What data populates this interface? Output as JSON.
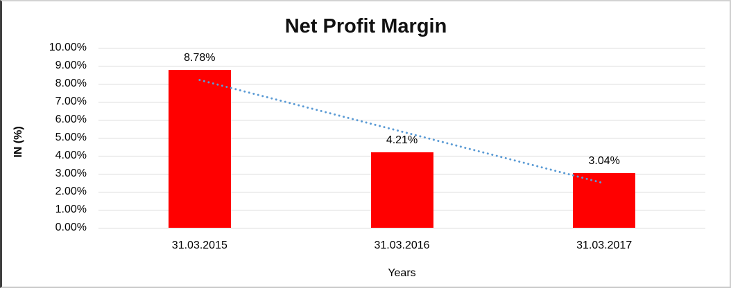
{
  "chart_data": {
    "type": "bar",
    "title": "Net Profit Margin",
    "xlabel": "Years",
    "ylabel": "IN (%)",
    "categories": [
      "31.03.2015",
      "31.03.2016",
      "31.03.2017"
    ],
    "values": [
      8.78,
      4.21,
      3.04
    ],
    "value_labels": [
      "8.78%",
      "4.21%",
      "3.04%"
    ],
    "ylim": [
      0,
      10
    ],
    "ytick_step": 1,
    "ytick_labels": [
      "0.00%",
      "1.00%",
      "2.00%",
      "3.00%",
      "4.00%",
      "5.00%",
      "6.00%",
      "7.00%",
      "8.00%",
      "9.00%",
      "10.00%"
    ],
    "grid": true,
    "legend_position": "none",
    "bar_color": "#ff0000",
    "gridline_color": "#d9d9d9",
    "text_color": "#000000",
    "trendline": {
      "type": "linear",
      "style": "dotted",
      "color": "#5b9bd5",
      "start_value": 8.21,
      "end_value": 2.47
    }
  }
}
